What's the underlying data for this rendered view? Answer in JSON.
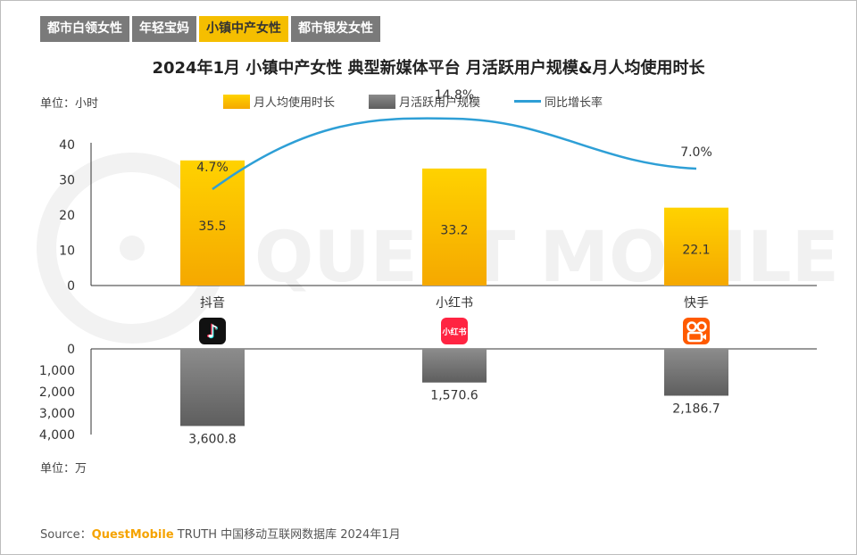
{
  "tabs": [
    {
      "label": "都市白领女性",
      "active": false
    },
    {
      "label": "年轻宝妈",
      "active": false
    },
    {
      "label": "小镇中产女性",
      "active": true
    },
    {
      "label": "都市银发女性",
      "active": false
    }
  ],
  "watermark": "QUEST MOBILE",
  "source": {
    "prefix": "Source：",
    "brand": "QuestMobile",
    "rest": " TRUTH 中国移动互联网数据库 2024年1月"
  },
  "colors": {
    "bar_top": "#ffd200",
    "bar_bottom": "#f5a800",
    "gray_top": "#8c8c8c",
    "gray_bottom": "#5e5e5e",
    "line": "#2e9fd6"
  },
  "chart_data": {
    "type": "bar",
    "title": "2024年1月 小镇中产女性 典型新媒体平台 月活跃用户规模&月人均使用时长",
    "categories": [
      "抖音",
      "小红书",
      "快手"
    ],
    "app_icons": [
      "douyin-icon",
      "xiaohongshu-icon",
      "kuaishou-icon"
    ],
    "xiaohongshu_icon_text": "小红书",
    "top_unit": "单位：小时",
    "bottom_unit": "单位：万",
    "top_ylim": [
      0,
      40
    ],
    "top_ticks": [
      "0",
      "10",
      "20",
      "30",
      "40"
    ],
    "bottom_ylim": [
      0,
      4000
    ],
    "bottom_ticks": [
      "0",
      "1,000",
      "2,000",
      "3,000",
      "4,000"
    ],
    "series": [
      {
        "name": "月人均使用时长",
        "values": [
          35.5,
          33.2,
          22.1
        ],
        "labels": [
          "35.5",
          "33.2",
          "22.1"
        ]
      },
      {
        "name": "月活跃用户规模",
        "values": [
          3600.8,
          1570.6,
          2186.7
        ],
        "labels": [
          "3,600.8",
          "1,570.6",
          "2,186.7"
        ]
      },
      {
        "name": "同比增长率",
        "values": [
          4.7,
          14.8,
          7.0
        ],
        "labels": [
          "4.7%",
          "14.8%",
          "7.0%"
        ]
      }
    ]
  }
}
